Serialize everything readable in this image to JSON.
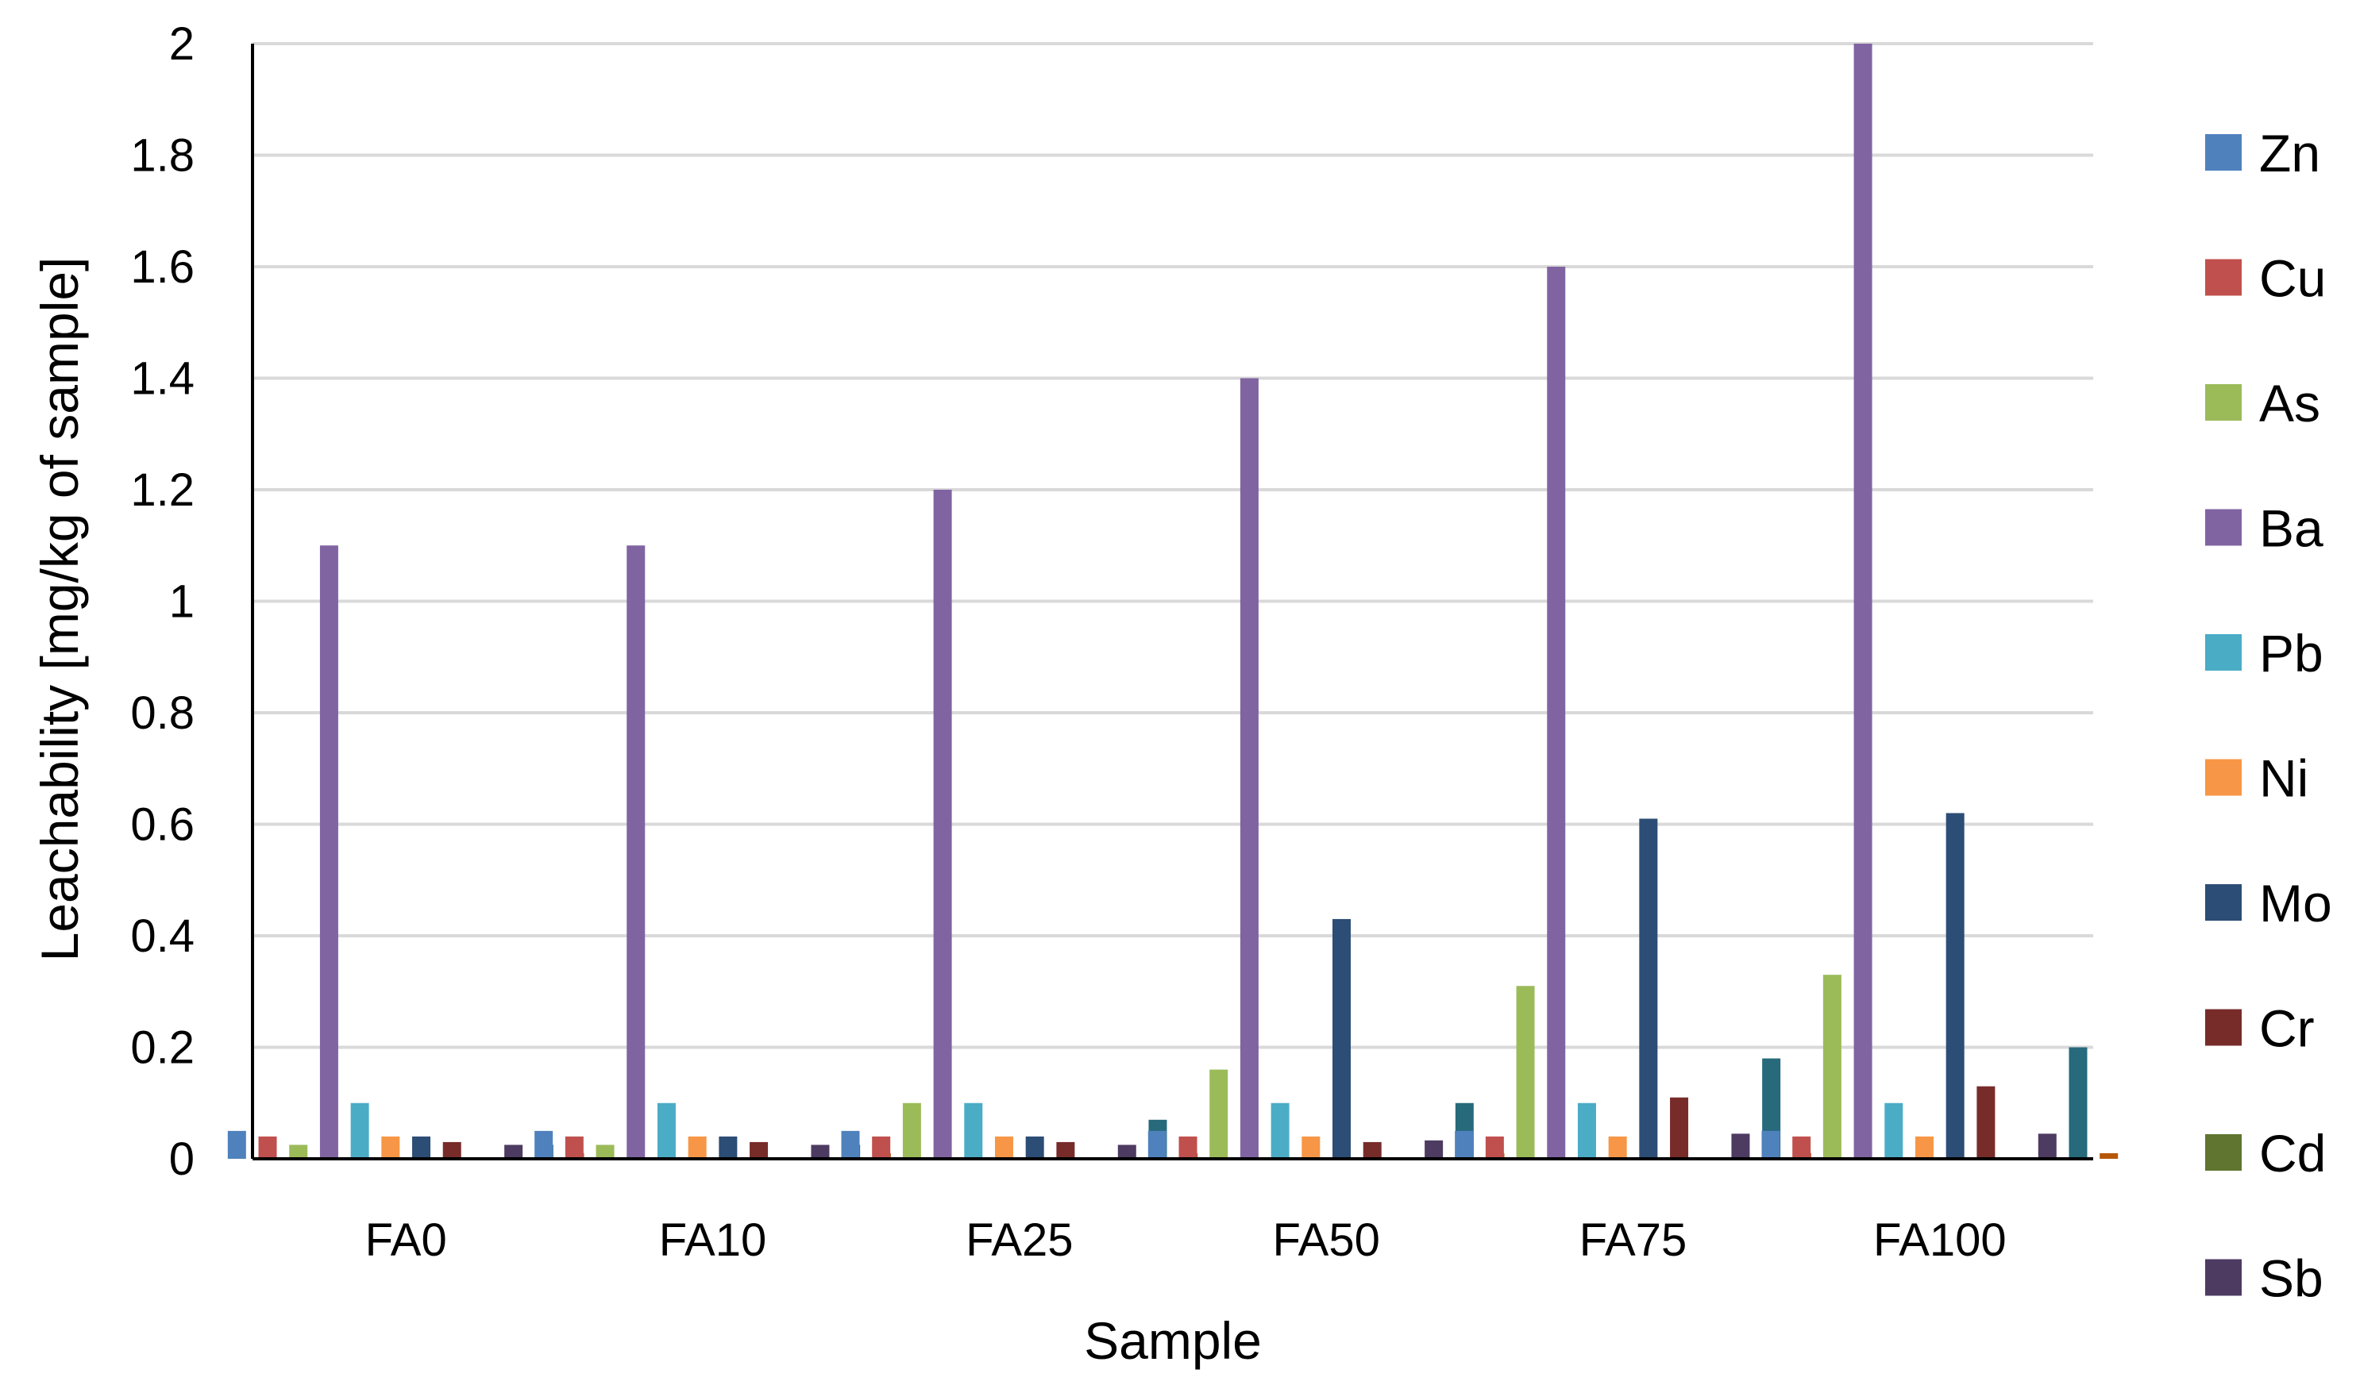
{
  "chart_data": {
    "type": "bar",
    "title": "",
    "xlabel": "Sample",
    "ylabel": "Leachability [mg/kg of sample]",
    "ylim": [
      0,
      2
    ],
    "yticks": [
      "0",
      "0.2",
      "0.4",
      "0.6",
      "0.8",
      "1",
      "1.2",
      "1.4",
      "1.6",
      "1.8",
      "2"
    ],
    "ytick_values": [
      0,
      0.2,
      0.4,
      0.6,
      0.8,
      1.0,
      1.2,
      1.4,
      1.6,
      1.8,
      2.0
    ],
    "grid": true,
    "legend_position": "right",
    "categories": [
      "FA0",
      "FA10",
      "FA25",
      "FA50",
      "FA75",
      "FA100"
    ],
    "series": [
      {
        "name": "Zn",
        "color": "#4F81BD",
        "values": [
          0.05,
          0.05,
          0.05,
          0.05,
          0.05,
          0.05
        ]
      },
      {
        "name": "Cu",
        "color": "#C0504D",
        "values": [
          0.04,
          0.04,
          0.04,
          0.04,
          0.04,
          0.04
        ]
      },
      {
        "name": "As",
        "color": "#9BBB59",
        "values": [
          0.025,
          0.025,
          0.1,
          0.16,
          0.31,
          0.33
        ]
      },
      {
        "name": "Ba",
        "color": "#8064A2",
        "values": [
          1.1,
          1.1,
          1.2,
          1.4,
          1.6,
          2.0
        ]
      },
      {
        "name": "Pb",
        "color": "#4BACC6",
        "values": [
          0.1,
          0.1,
          0.1,
          0.1,
          0.1,
          0.1
        ]
      },
      {
        "name": "Ni",
        "color": "#F79646",
        "values": [
          0.04,
          0.04,
          0.04,
          0.04,
          0.04,
          0.04
        ]
      },
      {
        "name": "Mo",
        "color": "#2C4D75",
        "values": [
          0.04,
          0.04,
          0.04,
          0.43,
          0.61,
          0.62
        ]
      },
      {
        "name": "Cr",
        "color": "#772C2A",
        "values": [
          0.03,
          0.03,
          0.03,
          0.03,
          0.11,
          0.13
        ]
      },
      {
        "name": "Cd",
        "color": "#5F7530",
        "values": [
          0,
          0,
          0,
          0,
          0,
          0
        ]
      },
      {
        "name": "Sb",
        "color": "#4D3B62",
        "values": [
          0.025,
          0.025,
          0.025,
          0.033,
          0.045,
          0.045
        ]
      },
      {
        "name": "",
        "color": "#276A7C",
        "values": [
          0.025,
          0.025,
          0.07,
          0.1,
          0.18,
          0.2
        ]
      },
      {
        "name": "",
        "color": "#B65708",
        "values": [
          0.01,
          0.01,
          0.01,
          0.01,
          0.01,
          0.01
        ]
      }
    ]
  }
}
